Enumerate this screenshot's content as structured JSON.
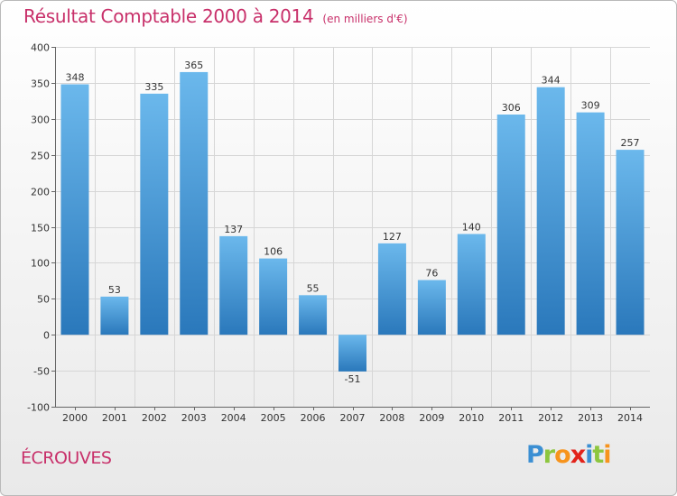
{
  "header": {
    "title": "Résultat Comptable 2000 à 2014",
    "subtitle": "(en milliers d'€)"
  },
  "footer": {
    "commune": "ÉCROUVES",
    "logo_letters": [
      "P",
      "r",
      "o",
      "x",
      "i",
      "t",
      "i"
    ],
    "logo_colors": [
      "#3b8fd3",
      "#8dc63f",
      "#f7941d",
      "#e2231a",
      "#3b8fd3",
      "#8dc63f",
      "#f7941d"
    ]
  },
  "colors": {
    "bar_top": "#6bb8ec",
    "bar_bottom": "#2a78bb",
    "title": "#c8306a"
  },
  "chart_data": {
    "type": "bar",
    "title": "Résultat Comptable 2000 à 2014",
    "subtitle": "(en milliers d'€)",
    "xlabel": "",
    "ylabel": "",
    "ylim": [
      -100,
      400
    ],
    "yticks": [
      -100,
      -50,
      0,
      50,
      100,
      150,
      200,
      250,
      300,
      350,
      400
    ],
    "grid": true,
    "legend": "none",
    "categories": [
      "2000",
      "2001",
      "2002",
      "2003",
      "2004",
      "2005",
      "2006",
      "2007",
      "2008",
      "2009",
      "2010",
      "2011",
      "2012",
      "2013",
      "2014"
    ],
    "values": [
      348,
      53,
      335,
      365,
      137,
      106,
      55,
      -51,
      127,
      76,
      140,
      306,
      344,
      309,
      257
    ]
  }
}
